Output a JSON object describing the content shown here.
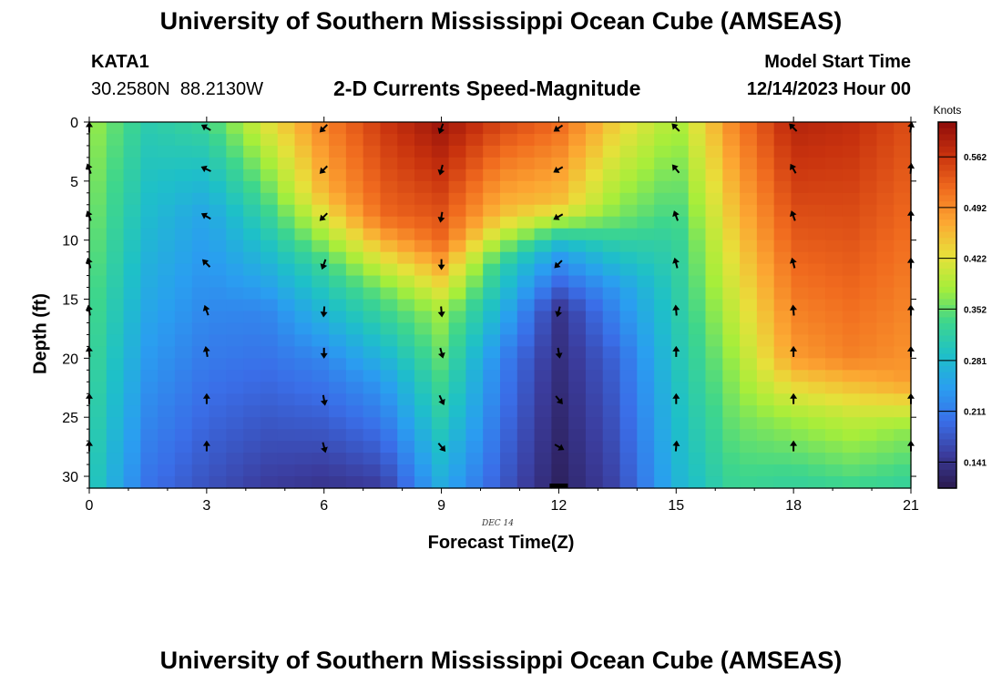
{
  "header": {
    "title": "University of Southern Mississippi Ocean Cube (AMSEAS)",
    "station_id": "KATA1",
    "station_coords": "30.2580N  88.2130W",
    "subtitle": "2-D Currents Speed-Magnitude",
    "model_start_label": "Model Start Time",
    "model_start_value": "12/14/2023 Hour 00"
  },
  "footer": {
    "title": "University of Southern Mississippi Ocean Cube (AMSEAS)"
  },
  "colors": {
    "colormap": [
      "#2a1a4e",
      "#3b3c9c",
      "#3a6ee8",
      "#2a9ef0",
      "#1ec0c8",
      "#3ed68c",
      "#a6ee3a",
      "#e8e03a",
      "#fca632",
      "#f06a1e",
      "#c8320e",
      "#8e0c0a"
    ]
  },
  "chart_data": {
    "type": "heatmap",
    "title": "2-D Currents Speed-Magnitude",
    "xlabel": "Forecast Time(Z)",
    "ylabel": "Depth (ft)",
    "date_label": "DEC 14",
    "x_ticks": [
      0,
      3,
      6,
      9,
      12,
      15,
      18,
      21
    ],
    "y_ticks": [
      0,
      5,
      10,
      15,
      20,
      25,
      30
    ],
    "xlim": [
      0,
      21
    ],
    "ylim": [
      0,
      31
    ],
    "colorbar": {
      "label": "Knots",
      "ticks": [
        "0.141",
        "0.211",
        "0.281",
        "0.352",
        "0.422",
        "0.492",
        "0.562"
      ],
      "range": [
        0.105,
        0.61
      ]
    },
    "columns": [
      {
        "hour": 0,
        "profile": [
          [
            0,
            0.38
          ],
          [
            31,
            0.31
          ]
        ]
      },
      {
        "hour": 1.5,
        "profile": [
          [
            0,
            0.31
          ],
          [
            31,
            0.2
          ]
        ]
      },
      {
        "hour": 3,
        "profile": [
          [
            0,
            0.33
          ],
          [
            8,
            0.25
          ],
          [
            31,
            0.17
          ]
        ]
      },
      {
        "hour": 4.5,
        "profile": [
          [
            0,
            0.42
          ],
          [
            8,
            0.32
          ],
          [
            16,
            0.22
          ],
          [
            31,
            0.15
          ]
        ]
      },
      {
        "hour": 6,
        "profile": [
          [
            0,
            0.5
          ],
          [
            6,
            0.46
          ],
          [
            12,
            0.33
          ],
          [
            20,
            0.22
          ],
          [
            31,
            0.14
          ]
        ]
      },
      {
        "hour": 7.5,
        "profile": [
          [
            0,
            0.56
          ],
          [
            8,
            0.52
          ],
          [
            14,
            0.36
          ],
          [
            22,
            0.24
          ],
          [
            31,
            0.15
          ]
        ]
      },
      {
        "hour": 9,
        "profile": [
          [
            0,
            0.6
          ],
          [
            10,
            0.52
          ],
          [
            16,
            0.38
          ],
          [
            24,
            0.32
          ],
          [
            31,
            0.26
          ]
        ]
      },
      {
        "hour": 10.5,
        "profile": [
          [
            0,
            0.55
          ],
          [
            8,
            0.45
          ],
          [
            12,
            0.32
          ],
          [
            20,
            0.22
          ],
          [
            31,
            0.18
          ]
        ]
      },
      {
        "hour": 12,
        "profile": [
          [
            0,
            0.52
          ],
          [
            7,
            0.45
          ],
          [
            11,
            0.25
          ],
          [
            16,
            0.14
          ],
          [
            31,
            0.115
          ]
        ]
      },
      {
        "hour": 13.5,
        "profile": [
          [
            0,
            0.44
          ],
          [
            8,
            0.36
          ],
          [
            14,
            0.24
          ],
          [
            20,
            0.19
          ],
          [
            31,
            0.16
          ]
        ]
      },
      {
        "hour": 15,
        "profile": [
          [
            0,
            0.38
          ],
          [
            10,
            0.32
          ],
          [
            31,
            0.27
          ]
        ]
      },
      {
        "hour": 16.5,
        "profile": [
          [
            0,
            0.5
          ],
          [
            10,
            0.44
          ],
          [
            20,
            0.38
          ],
          [
            31,
            0.33
          ]
        ]
      },
      {
        "hour": 18,
        "profile": [
          [
            0,
            0.58
          ],
          [
            20,
            0.48
          ],
          [
            25,
            0.38
          ],
          [
            31,
            0.32
          ]
        ]
      },
      {
        "hour": 19.5,
        "profile": [
          [
            0,
            0.57
          ],
          [
            20,
            0.5
          ],
          [
            25,
            0.4
          ],
          [
            31,
            0.33
          ]
        ]
      },
      {
        "hour": 21,
        "profile": [
          [
            0,
            0.54
          ],
          [
            22,
            0.48
          ],
          [
            26,
            0.37
          ],
          [
            31,
            0.32
          ]
        ]
      }
    ],
    "arrow_depths": [
      0.5,
      4,
      8,
      12,
      16,
      19.5,
      23.5,
      27.5
    ],
    "arrows": [
      {
        "hour": 0,
        "dirs": [
          0,
          340,
          340,
          345,
          350,
          355,
          0,
          0
        ]
      },
      {
        "hour": 3,
        "dirs": [
          300,
          295,
          300,
          315,
          340,
          350,
          0,
          0
        ]
      },
      {
        "hour": 6,
        "dirs": [
          225,
          225,
          225,
          200,
          185,
          180,
          170,
          165
        ]
      },
      {
        "hour": 9,
        "dirs": [
          200,
          195,
          190,
          180,
          175,
          165,
          155,
          140
        ]
      },
      {
        "hour": 12,
        "dirs": [
          235,
          240,
          240,
          225,
          195,
          170,
          140,
          120
        ]
      },
      {
        "hour": 15,
        "dirs": [
          315,
          320,
          340,
          345,
          355,
          0,
          0,
          5
        ]
      },
      {
        "hour": 18,
        "dirs": [
          315,
          330,
          340,
          345,
          355,
          0,
          0,
          0
        ]
      },
      {
        "hour": 21,
        "dirs": [
          10,
          5,
          0,
          0,
          0,
          0,
          0,
          0
        ]
      }
    ]
  }
}
